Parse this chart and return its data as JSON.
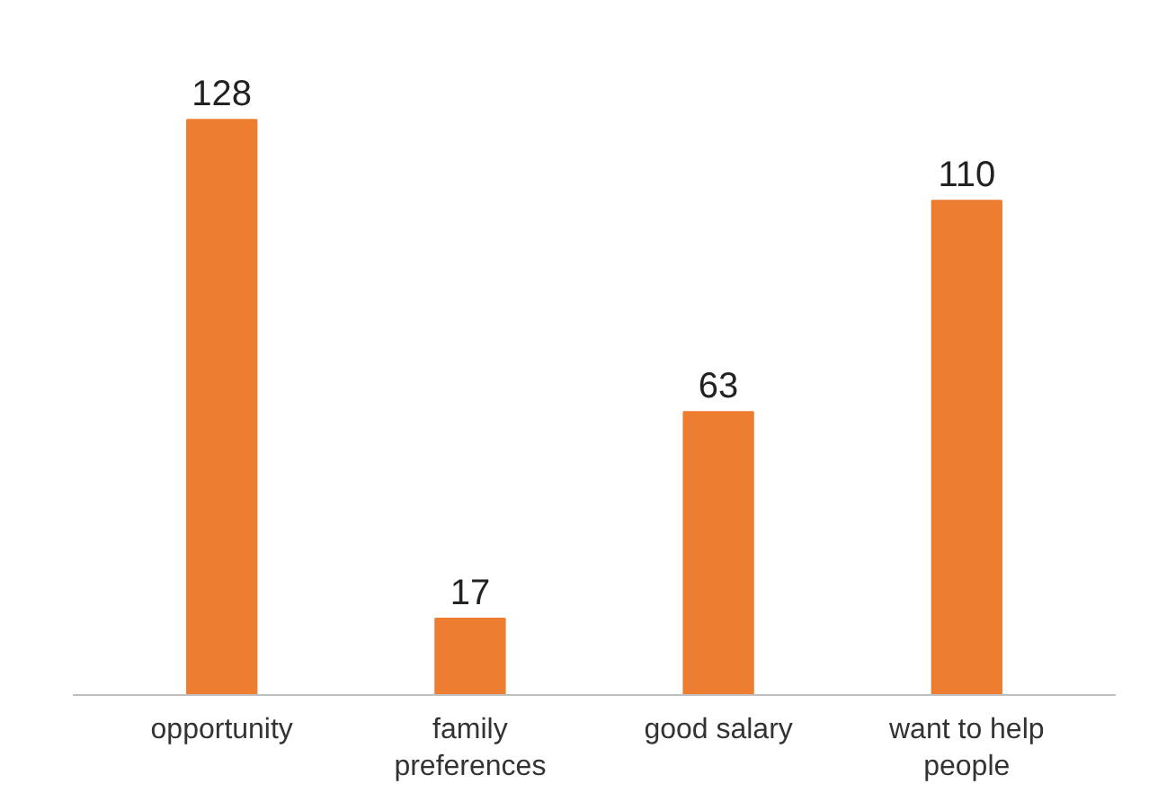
{
  "chart_data": {
    "type": "bar",
    "categories": [
      "opportunity",
      "family preferences",
      "good salary",
      "want to help people"
    ],
    "values": [
      128,
      17,
      63,
      110
    ],
    "color": "#ed7d31",
    "data_labels": true
  }
}
